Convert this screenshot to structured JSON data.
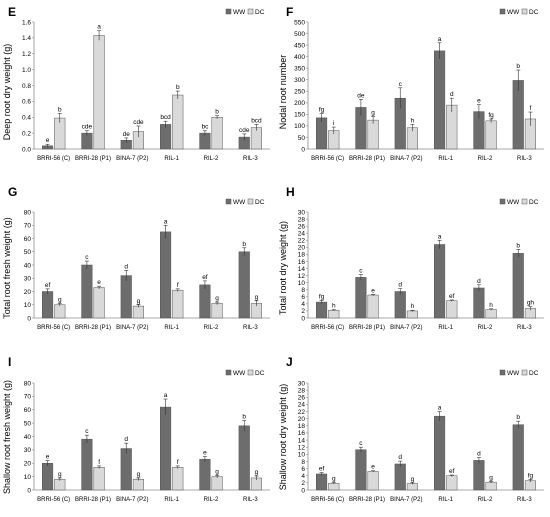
{
  "chart_data": [
    {
      "panel": "E",
      "type": "bar",
      "ylabel": "Deep root dry weight (g)",
      "ylim": [
        0,
        1.6
      ],
      "yticks": [
        0,
        0.2,
        0.4,
        0.6,
        0.8,
        1.0,
        1.2,
        1.4,
        1.6
      ],
      "ytick_labels": [
        "0.0",
        "0.2",
        "0.4",
        "0.6",
        "0.8",
        "1.0",
        "1.2",
        "1.4",
        "1.6"
      ],
      "categories": [
        "BRRI-56 (C)",
        "BRRI-28 (P1)",
        "BINA-7 (P2)",
        "RIL-1",
        "RIL-2",
        "RIL-3"
      ],
      "legend": [
        "WW",
        "DC"
      ],
      "grid": false,
      "series": [
        {
          "name": "WW",
          "color": "#6d6d6d",
          "values": [
            0.04,
            0.2,
            0.11,
            0.31,
            0.2,
            0.15
          ],
          "errors": [
            0.02,
            0.03,
            0.03,
            0.04,
            0.03,
            0.04
          ],
          "letters": [
            "e",
            "cde",
            "de",
            "bcd",
            "bc",
            "cde"
          ]
        },
        {
          "name": "DC",
          "color": "#d9d9d9",
          "values": [
            0.39,
            1.43,
            0.22,
            0.68,
            0.4,
            0.27
          ],
          "errors": [
            0.06,
            0.06,
            0.07,
            0.05,
            0.02,
            0.04
          ],
          "letters": [
            "b",
            "a",
            "cde",
            "b",
            "b",
            "bcd"
          ]
        }
      ]
    },
    {
      "panel": "F",
      "type": "bar",
      "ylabel": "Nodal root number",
      "ylim": [
        0,
        550
      ],
      "yticks": [
        0,
        50,
        100,
        150,
        200,
        250,
        300,
        350,
        400,
        450,
        500,
        550
      ],
      "ytick_labels": [
        "0",
        "50",
        "100",
        "150",
        "200",
        "250",
        "300",
        "350",
        "400",
        "450",
        "500",
        "550"
      ],
      "categories": [
        "BRRI-56 (C)",
        "BRRI-28 (P1)",
        "BINA-7 (P2)",
        "RIL-1",
        "RIL-2",
        "RIL-3"
      ],
      "legend": [
        "WW",
        "DC"
      ],
      "grid": false,
      "series": [
        {
          "name": "WW",
          "color": "#6d6d6d",
          "values": [
            135,
            180,
            220,
            425,
            162,
            297
          ],
          "errors": [
            18,
            35,
            45,
            35,
            30,
            45
          ],
          "letters": [
            "fg",
            "de",
            "c",
            "a",
            "e",
            "b"
          ]
        },
        {
          "name": "DC",
          "color": "#d9d9d9",
          "values": [
            80,
            125,
            92,
            190,
            122,
            130
          ],
          "errors": [
            15,
            15,
            15,
            30,
            8,
            30
          ],
          "letters": [
            "i",
            "g",
            "h",
            "d",
            "fg",
            "f"
          ]
        }
      ]
    },
    {
      "panel": "G",
      "type": "bar",
      "ylabel": "Total root fresh weight (g)",
      "ylim": [
        0,
        80
      ],
      "yticks": [
        0,
        10,
        20,
        30,
        40,
        50,
        60,
        70,
        80
      ],
      "ytick_labels": [
        "0",
        "10",
        "20",
        "30",
        "40",
        "50",
        "60",
        "70",
        "80"
      ],
      "categories": [
        "BRRI-56 (C)",
        "BRRI-28 (P1)",
        "BINA-7 (P2)",
        "RIL-1",
        "RIL-2",
        "RIL-3"
      ],
      "legend": [
        "WW",
        "DC"
      ],
      "grid": false,
      "series": [
        {
          "name": "WW",
          "color": "#6d6d6d",
          "values": [
            20,
            40,
            32,
            65,
            25,
            50
          ],
          "errors": [
            2,
            3,
            4,
            5,
            3,
            3
          ],
          "letters": [
            "ef",
            "c",
            "d",
            "a",
            "ef",
            "b"
          ]
        },
        {
          "name": "DC",
          "color": "#d9d9d9",
          "values": [
            10,
            23,
            9,
            21,
            11,
            11
          ],
          "errors": [
            1,
            1,
            1,
            1,
            1,
            2
          ],
          "letters": [
            "g",
            "e",
            "g",
            "f",
            "g",
            "g"
          ]
        }
      ]
    },
    {
      "panel": "H",
      "type": "bar",
      "ylabel": "Total root dry weight (g)",
      "ylim": [
        0,
        30
      ],
      "yticks": [
        0,
        2,
        4,
        6,
        8,
        10,
        12,
        14,
        16,
        18,
        20,
        22,
        24,
        26,
        28,
        30
      ],
      "ytick_labels": [
        "0",
        "2",
        "4",
        "6",
        "8",
        "10",
        "12",
        "14",
        "16",
        "18",
        "20",
        "22",
        "24",
        "26",
        "28",
        "30"
      ],
      "categories": [
        "BRRI-56 (C)",
        "BRRI-28 (P1)",
        "BINA-7 (P2)",
        "RIL-1",
        "RIL-2",
        "RIL-3"
      ],
      "legend": [
        "WW",
        "DC"
      ],
      "grid": false,
      "series": [
        {
          "name": "WW",
          "color": "#6d6d6d",
          "values": [
            4.5,
            11.5,
            7.5,
            20.8,
            8.5,
            18.3
          ],
          "errors": [
            0.5,
            0.8,
            0.8,
            1.2,
            0.9,
            1.1
          ],
          "letters": [
            "fg",
            "c",
            "d",
            "a",
            "d",
            "b"
          ]
        },
        {
          "name": "DC",
          "color": "#d9d9d9",
          "values": [
            2.2,
            6.5,
            2,
            4.9,
            2.4,
            2.7
          ],
          "errors": [
            0.2,
            0.2,
            0.2,
            0.2,
            0.2,
            0.5
          ],
          "letters": [
            "h",
            "e",
            "h",
            "ef",
            "h",
            "gh"
          ]
        }
      ]
    },
    {
      "panel": "I",
      "type": "bar",
      "ylabel": "Shallow root fresh weight (g)",
      "ylim": [
        0,
        80
      ],
      "yticks": [
        0,
        10,
        20,
        30,
        40,
        50,
        60,
        70,
        80
      ],
      "ytick_labels": [
        "0",
        "10",
        "20",
        "30",
        "40",
        "50",
        "60",
        "70",
        "80"
      ],
      "categories": [
        "BRRI-56 (C)",
        "BRRI-28 (P1)",
        "BINA-7 (P2)",
        "RIL-1",
        "RIL-2",
        "RIL-3"
      ],
      "legend": [
        "WW",
        "DC"
      ],
      "grid": false,
      "series": [
        {
          "name": "WW",
          "color": "#6d6d6d",
          "values": [
            20,
            38,
            31,
            62,
            23,
            48
          ],
          "errors": [
            2,
            3,
            4,
            6,
            2,
            4
          ],
          "letters": [
            "e",
            "c",
            "d",
            "a",
            "e",
            "b"
          ]
        },
        {
          "name": "DC",
          "color": "#d9d9d9",
          "values": [
            8,
            17,
            8,
            17,
            10,
            9
          ],
          "errors": [
            1,
            1,
            1,
            1,
            1,
            1.5
          ],
          "letters": [
            "g",
            "f",
            "g",
            "f",
            "g",
            "g"
          ]
        }
      ]
    },
    {
      "panel": "J",
      "type": "bar",
      "ylabel": "Shallow root dry weight (g)",
      "ylim": [
        0,
        30
      ],
      "yticks": [
        0,
        2,
        4,
        6,
        8,
        10,
        12,
        14,
        16,
        18,
        20,
        22,
        24,
        26,
        28,
        30
      ],
      "ytick_labels": [
        "0",
        "2",
        "4",
        "6",
        "8",
        "10",
        "12",
        "14",
        "16",
        "18",
        "20",
        "22",
        "24",
        "26",
        "28",
        "30"
      ],
      "categories": [
        "BRRI-56 (C)",
        "BRRI-28 (P1)",
        "BINA-7 (P2)",
        "RIL-1",
        "RIL-2",
        "RIL-3"
      ],
      "legend": [
        "WW",
        "DC"
      ],
      "grid": false,
      "series": [
        {
          "name": "WW",
          "color": "#6d6d6d",
          "values": [
            4.5,
            11.3,
            7.3,
            20.7,
            8.3,
            18.3
          ],
          "errors": [
            0.4,
            0.7,
            0.8,
            1.3,
            0.8,
            1.0
          ],
          "letters": [
            "ef",
            "c",
            "d",
            "a",
            "d",
            "b"
          ]
        },
        {
          "name": "DC",
          "color": "#d9d9d9",
          "values": [
            1.9,
            5.2,
            1.8,
            4.0,
            2.2,
            2.6
          ],
          "errors": [
            0.2,
            0.2,
            0.2,
            0.2,
            0.2,
            0.4
          ],
          "letters": [
            "g",
            "e",
            "g",
            "ef",
            "g",
            "fg"
          ]
        }
      ]
    }
  ]
}
